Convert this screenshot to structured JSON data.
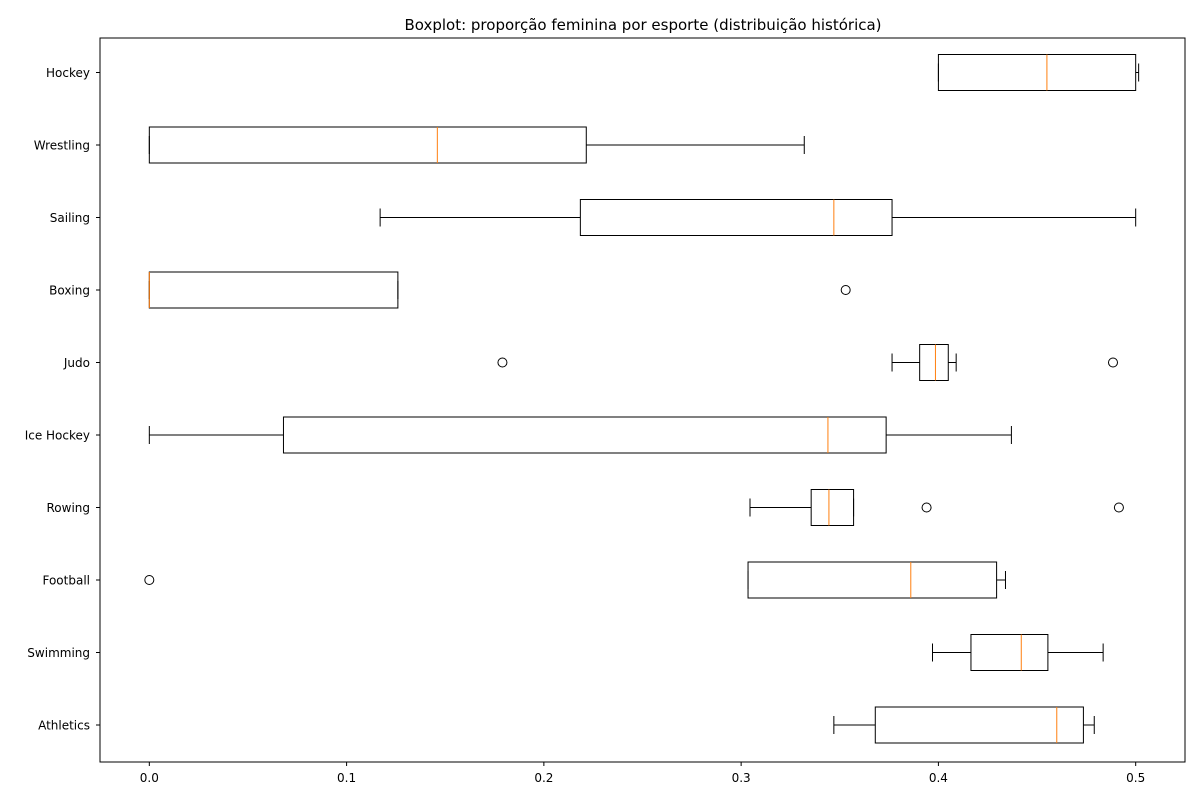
{
  "chart_data": {
    "type": "boxplot",
    "orientation": "horizontal",
    "title": "Boxplot: proporção feminina por esporte (distribuição histórica)",
    "xlabel": "",
    "ylabel": "",
    "xlim": [
      -0.025,
      0.525
    ],
    "xticks": [
      0.0,
      0.1,
      0.2,
      0.3,
      0.4,
      0.5
    ],
    "xtick_labels": [
      "0.0",
      "0.1",
      "0.2",
      "0.3",
      "0.4",
      "0.5"
    ],
    "grid": false,
    "colors": {
      "box": "#000000",
      "median": "#ff7f0e",
      "outlier": "#000000"
    },
    "categories": [
      "Athletics",
      "Swimming",
      "Football",
      "Rowing",
      "Ice Hockey",
      "Judo",
      "Boxing",
      "Sailing",
      "Wrestling",
      "Hockey"
    ],
    "boxes": [
      {
        "name": "Athletics",
        "whislo": 0.347,
        "q1": 0.368,
        "med": 0.46,
        "q3": 0.4735,
        "whishi": 0.479,
        "fliers": []
      },
      {
        "name": "Swimming",
        "whislo": 0.397,
        "q1": 0.4165,
        "med": 0.442,
        "q3": 0.4555,
        "whishi": 0.4835,
        "fliers": []
      },
      {
        "name": "Football",
        "whislo": 0.3035,
        "q1": 0.3035,
        "med": 0.386,
        "q3": 0.4295,
        "whishi": 0.434,
        "fliers": [
          0.0
        ]
      },
      {
        "name": "Rowing",
        "whislo": 0.3045,
        "q1": 0.3355,
        "med": 0.3445,
        "q3": 0.357,
        "whishi": 0.357,
        "fliers": [
          0.394,
          0.4915
        ]
      },
      {
        "name": "Ice Hockey",
        "whislo": 0.0,
        "q1": 0.068,
        "med": 0.344,
        "q3": 0.3735,
        "whishi": 0.437,
        "fliers": []
      },
      {
        "name": "Judo",
        "whislo": 0.3765,
        "q1": 0.3905,
        "med": 0.3985,
        "q3": 0.405,
        "whishi": 0.409,
        "fliers": [
          0.179,
          0.4885
        ]
      },
      {
        "name": "Boxing",
        "whislo": 0.0,
        "q1": 0.0,
        "med": 0.0,
        "q3": 0.126,
        "whishi": 0.126,
        "fliers": [
          0.353
        ]
      },
      {
        "name": "Sailing",
        "whislo": 0.117,
        "q1": 0.2185,
        "med": 0.347,
        "q3": 0.3765,
        "whishi": 0.5,
        "fliers": []
      },
      {
        "name": "Wrestling",
        "whislo": 0.0,
        "q1": 0.0,
        "med": 0.146,
        "q3": 0.2215,
        "whishi": 0.332,
        "fliers": []
      },
      {
        "name": "Hockey",
        "whislo": 0.4,
        "q1": 0.4,
        "med": 0.455,
        "q3": 0.5,
        "whishi": 0.5015,
        "fliers": []
      }
    ]
  }
}
